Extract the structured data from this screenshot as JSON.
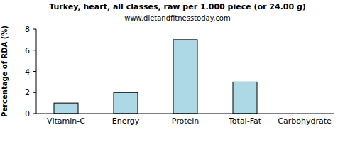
{
  "chart_data": {
    "type": "bar",
    "title": "Turkey, heart, all classes, raw per 1.000 piece (or 24.00 g)",
    "subtitle": "www.dietandfitnesstoday.com",
    "y_label": "Percentage of RDA (%)",
    "categories": [
      "Vitamin-C",
      "Energy",
      "Protein",
      "Total-Fat",
      "Carbohydrate"
    ],
    "values": [
      1,
      2,
      7,
      3,
      0
    ],
    "color": "#add8e6",
    "ylim": [
      0,
      8
    ],
    "yticks": [
      0,
      2,
      4,
      6,
      8
    ],
    "grid": false
  }
}
